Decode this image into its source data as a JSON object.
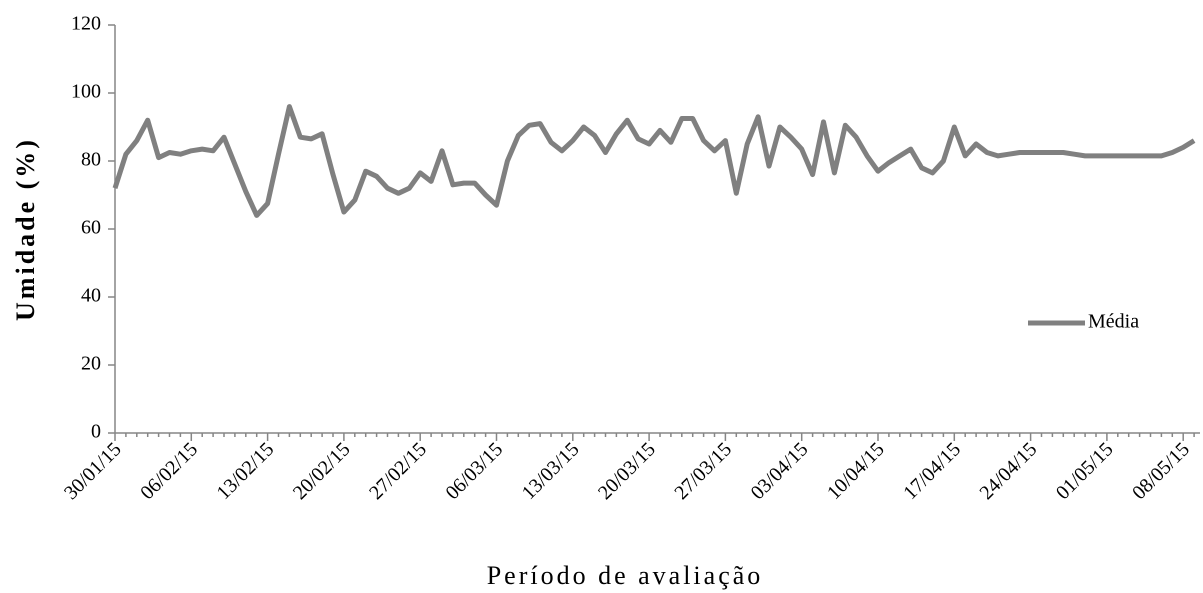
{
  "chart_data": {
    "type": "line",
    "x_label": "Período de avaliação",
    "y_label": "Umidade (%)",
    "categories": [
      "30/01/15",
      null,
      null,
      null,
      null,
      null,
      null,
      "06/02/15",
      null,
      null,
      null,
      null,
      null,
      null,
      "13/02/15",
      null,
      null,
      null,
      null,
      null,
      null,
      "20/02/15",
      null,
      null,
      null,
      null,
      null,
      null,
      "27/02/15",
      null,
      null,
      null,
      null,
      null,
      null,
      "06/03/15",
      null,
      null,
      null,
      null,
      null,
      null,
      "13/03/15",
      null,
      null,
      null,
      null,
      null,
      null,
      "20/03/15",
      null,
      null,
      null,
      null,
      null,
      null,
      "27/03/15",
      null,
      null,
      null,
      null,
      null,
      null,
      "03/04/15",
      null,
      null,
      null,
      null,
      null,
      null,
      "10/04/15",
      null,
      null,
      null,
      null,
      null,
      null,
      "17/04/15",
      null,
      null,
      null,
      null,
      null,
      null,
      "24/04/15",
      null,
      null,
      null,
      null,
      null,
      null,
      "01/05/15",
      null,
      null,
      null,
      null,
      null,
      null,
      "08/05/15",
      null
    ],
    "series": [
      {
        "name": "Média",
        "color": "#808080",
        "values": [
          72,
          82,
          86,
          92,
          81,
          82.5,
          82,
          83,
          83.5,
          83,
          87,
          79,
          71,
          64,
          67.5,
          82,
          96,
          87,
          86.5,
          88,
          76,
          65,
          68.5,
          77,
          75.5,
          72,
          70.5,
          72,
          76.5,
          74,
          83,
          73,
          73.5,
          73.5,
          70,
          67,
          80,
          87.5,
          90.5,
          91,
          85.5,
          83,
          86,
          90,
          87.5,
          82.5,
          88,
          92,
          86.5,
          85,
          89,
          85.5,
          92.5,
          92.5,
          86,
          83,
          86,
          70.5,
          85,
          93,
          78.5,
          90,
          87,
          83.5,
          76,
          91.5,
          76.5,
          90.5,
          87,
          81.5,
          77,
          79.5,
          81.5,
          83.5,
          78,
          76.5,
          80,
          90,
          81.5,
          85,
          82.5,
          81.5,
          82,
          82.5,
          82.5,
          82.5,
          82.5,
          82.5,
          82,
          81.5,
          81.5,
          81.5,
          81.5,
          81.5,
          81.5,
          81.5,
          81.5,
          82.5,
          84,
          86
        ]
      }
    ],
    "ylim": [
      0,
      120
    ],
    "yticks": [
      0,
      20,
      40,
      60,
      80,
      100,
      120
    ],
    "grid": false,
    "legend": "right"
  }
}
